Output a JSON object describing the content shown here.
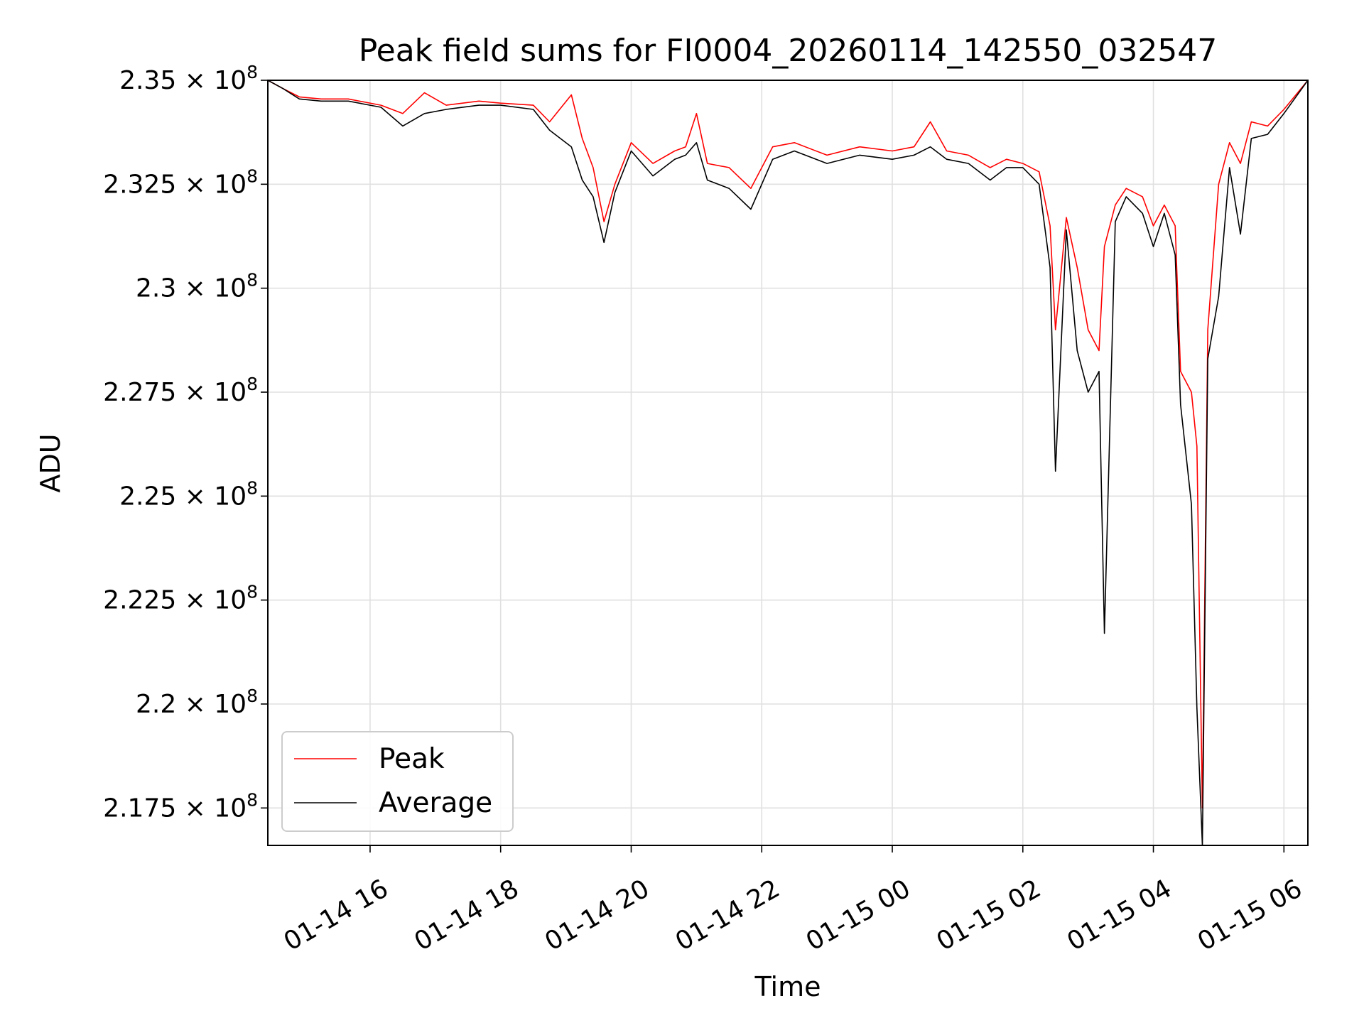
{
  "chart_data": {
    "type": "line",
    "title": "Peak field sums for FI0004_20260114_142550_032547",
    "xlabel": "Time",
    "ylabel": "ADU",
    "grid": true,
    "legend": "lower-left",
    "xlim": [
      "2026-01-14 14:26",
      "2026-01-15 06:22"
    ],
    "ylim": [
      216.6,
      235.0
    ],
    "y_scale_exponent": 8,
    "y_ticks": [
      {
        "value": 235.0,
        "mantissa": "2.35",
        "exp": "8"
      },
      {
        "value": 232.5,
        "mantissa": "2.325",
        "exp": "8"
      },
      {
        "value": 230.0,
        "mantissa": "2.3",
        "exp": "8"
      },
      {
        "value": 227.5,
        "mantissa": "2.275",
        "exp": "8"
      },
      {
        "value": 225.0,
        "mantissa": "2.25",
        "exp": "8"
      },
      {
        "value": 222.5,
        "mantissa": "2.225",
        "exp": "8"
      },
      {
        "value": 220.0,
        "mantissa": "2.2",
        "exp": "8"
      },
      {
        "value": 217.5,
        "mantissa": "2.175",
        "exp": "8"
      }
    ],
    "x_ticks": [
      {
        "value": "2026-01-14 16:00",
        "label": "01-14 16"
      },
      {
        "value": "2026-01-14 18:00",
        "label": "01-14 18"
      },
      {
        "value": "2026-01-14 20:00",
        "label": "01-14 20"
      },
      {
        "value": "2026-01-14 22:00",
        "label": "01-14 22"
      },
      {
        "value": "2026-01-15 00:00",
        "label": "01-15 00"
      },
      {
        "value": "2026-01-15 02:00",
        "label": "01-15 02"
      },
      {
        "value": "2026-01-15 04:00",
        "label": "01-15 04"
      },
      {
        "value": "2026-01-15 06:00",
        "label": "01-15 06"
      }
    ],
    "series": [
      {
        "name": "Peak",
        "color": "#ff0000",
        "points": [
          [
            "2026-01-14 14:26",
            235.0
          ],
          [
            "2026-01-14 14:40",
            234.8
          ],
          [
            "2026-01-14 14:55",
            234.6
          ],
          [
            "2026-01-14 15:15",
            234.55
          ],
          [
            "2026-01-14 15:40",
            234.55
          ],
          [
            "2026-01-14 16:10",
            234.4
          ],
          [
            "2026-01-14 16:30",
            234.2
          ],
          [
            "2026-01-14 16:50",
            234.7
          ],
          [
            "2026-01-14 17:10",
            234.4
          ],
          [
            "2026-01-14 17:40",
            234.5
          ],
          [
            "2026-01-14 18:00",
            234.45
          ],
          [
            "2026-01-14 18:30",
            234.4
          ],
          [
            "2026-01-14 18:45",
            234.0
          ],
          [
            "2026-01-14 19:05",
            234.65
          ],
          [
            "2026-01-14 19:15",
            233.6
          ],
          [
            "2026-01-14 19:25",
            232.9
          ],
          [
            "2026-01-14 19:35",
            231.6
          ],
          [
            "2026-01-14 19:45",
            232.5
          ],
          [
            "2026-01-14 20:00",
            233.5
          ],
          [
            "2026-01-14 20:20",
            233.0
          ],
          [
            "2026-01-14 20:40",
            233.3
          ],
          [
            "2026-01-14 20:50",
            233.4
          ],
          [
            "2026-01-14 21:00",
            234.2
          ],
          [
            "2026-01-14 21:10",
            233.0
          ],
          [
            "2026-01-14 21:30",
            232.9
          ],
          [
            "2026-01-14 21:50",
            232.4
          ],
          [
            "2026-01-14 22:10",
            233.4
          ],
          [
            "2026-01-14 22:30",
            233.5
          ],
          [
            "2026-01-14 23:00",
            233.2
          ],
          [
            "2026-01-14 23:30",
            233.4
          ],
          [
            "2026-01-15 00:00",
            233.3
          ],
          [
            "2026-01-15 00:20",
            233.4
          ],
          [
            "2026-01-15 00:35",
            234.0
          ],
          [
            "2026-01-15 00:50",
            233.3
          ],
          [
            "2026-01-15 01:10",
            233.2
          ],
          [
            "2026-01-15 01:30",
            232.9
          ],
          [
            "2026-01-15 01:45",
            233.1
          ],
          [
            "2026-01-15 02:00",
            233.0
          ],
          [
            "2026-01-15 02:15",
            232.8
          ],
          [
            "2026-01-15 02:25",
            231.5
          ],
          [
            "2026-01-15 02:30",
            229.0
          ],
          [
            "2026-01-15 02:40",
            231.7
          ],
          [
            "2026-01-15 02:50",
            230.5
          ],
          [
            "2026-01-15 03:00",
            229.0
          ],
          [
            "2026-01-15 03:10",
            228.5
          ],
          [
            "2026-01-15 03:15",
            231.0
          ],
          [
            "2026-01-15 03:25",
            232.0
          ],
          [
            "2026-01-15 03:35",
            232.4
          ],
          [
            "2026-01-15 03:50",
            232.2
          ],
          [
            "2026-01-15 04:00",
            231.5
          ],
          [
            "2026-01-15 04:10",
            232.0
          ],
          [
            "2026-01-15 04:20",
            231.5
          ],
          [
            "2026-01-15 04:25",
            228.0
          ],
          [
            "2026-01-15 04:35",
            227.5
          ],
          [
            "2026-01-15 04:40",
            226.2
          ],
          [
            "2026-01-15 04:45",
            217.5
          ],
          [
            "2026-01-15 04:50",
            229.0
          ],
          [
            "2026-01-15 05:00",
            232.5
          ],
          [
            "2026-01-15 05:10",
            233.5
          ],
          [
            "2026-01-15 05:20",
            233.0
          ],
          [
            "2026-01-15 05:30",
            234.0
          ],
          [
            "2026-01-15 05:45",
            233.9
          ],
          [
            "2026-01-15 06:00",
            234.3
          ],
          [
            "2026-01-15 06:22",
            235.0
          ]
        ]
      },
      {
        "name": "Average",
        "color": "#000000",
        "points": [
          [
            "2026-01-14 14:26",
            235.0
          ],
          [
            "2026-01-14 14:40",
            234.8
          ],
          [
            "2026-01-14 14:55",
            234.55
          ],
          [
            "2026-01-14 15:15",
            234.5
          ],
          [
            "2026-01-14 15:40",
            234.5
          ],
          [
            "2026-01-14 16:10",
            234.35
          ],
          [
            "2026-01-14 16:30",
            233.9
          ],
          [
            "2026-01-14 16:50",
            234.2
          ],
          [
            "2026-01-14 17:10",
            234.3
          ],
          [
            "2026-01-14 17:40",
            234.4
          ],
          [
            "2026-01-14 18:00",
            234.4
          ],
          [
            "2026-01-14 18:30",
            234.3
          ],
          [
            "2026-01-14 18:45",
            233.8
          ],
          [
            "2026-01-14 19:05",
            233.4
          ],
          [
            "2026-01-14 19:15",
            232.6
          ],
          [
            "2026-01-14 19:25",
            232.2
          ],
          [
            "2026-01-14 19:35",
            231.1
          ],
          [
            "2026-01-14 19:45",
            232.3
          ],
          [
            "2026-01-14 20:00",
            233.3
          ],
          [
            "2026-01-14 20:20",
            232.7
          ],
          [
            "2026-01-14 20:40",
            233.1
          ],
          [
            "2026-01-14 20:50",
            233.2
          ],
          [
            "2026-01-14 21:00",
            233.5
          ],
          [
            "2026-01-14 21:10",
            232.6
          ],
          [
            "2026-01-14 21:30",
            232.4
          ],
          [
            "2026-01-14 21:50",
            231.9
          ],
          [
            "2026-01-14 22:10",
            233.1
          ],
          [
            "2026-01-14 22:30",
            233.3
          ],
          [
            "2026-01-14 23:00",
            233.0
          ],
          [
            "2026-01-14 23:30",
            233.2
          ],
          [
            "2026-01-15 00:00",
            233.1
          ],
          [
            "2026-01-15 00:20",
            233.2
          ],
          [
            "2026-01-15 00:35",
            233.4
          ],
          [
            "2026-01-15 00:50",
            233.1
          ],
          [
            "2026-01-15 01:10",
            233.0
          ],
          [
            "2026-01-15 01:30",
            232.6
          ],
          [
            "2026-01-15 01:45",
            232.9
          ],
          [
            "2026-01-15 02:00",
            232.9
          ],
          [
            "2026-01-15 02:15",
            232.5
          ],
          [
            "2026-01-15 02:25",
            230.5
          ],
          [
            "2026-01-15 02:30",
            225.6
          ],
          [
            "2026-01-15 02:40",
            231.4
          ],
          [
            "2026-01-15 02:50",
            228.5
          ],
          [
            "2026-01-15 03:00",
            227.5
          ],
          [
            "2026-01-15 03:10",
            228.0
          ],
          [
            "2026-01-15 03:15",
            221.7
          ],
          [
            "2026-01-15 03:25",
            231.6
          ],
          [
            "2026-01-15 03:35",
            232.2
          ],
          [
            "2026-01-15 03:50",
            231.8
          ],
          [
            "2026-01-15 04:00",
            231.0
          ],
          [
            "2026-01-15 04:10",
            231.8
          ],
          [
            "2026-01-15 04:20",
            230.8
          ],
          [
            "2026-01-15 04:25",
            227.2
          ],
          [
            "2026-01-15 04:35",
            224.8
          ],
          [
            "2026-01-15 04:40",
            219.9
          ],
          [
            "2026-01-15 04:45",
            216.6
          ],
          [
            "2026-01-15 04:50",
            228.3
          ],
          [
            "2026-01-15 05:00",
            229.8
          ],
          [
            "2026-01-15 05:10",
            232.9
          ],
          [
            "2026-01-15 05:20",
            231.3
          ],
          [
            "2026-01-15 05:30",
            233.6
          ],
          [
            "2026-01-15 05:45",
            233.7
          ],
          [
            "2026-01-15 06:00",
            234.2
          ],
          [
            "2026-01-15 06:22",
            235.0
          ]
        ]
      }
    ]
  }
}
